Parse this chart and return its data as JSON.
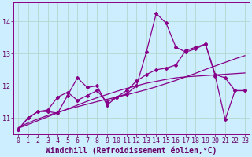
{
  "background_color": "#cceeff",
  "grid_color": "#b0d8cc",
  "line_color": "#880088",
  "xlabel": "Windchill (Refroidissement éolien,°C)",
  "xlabel_color": "#660066",
  "xlabel_fontsize": 7.0,
  "tick_color": "#660066",
  "tick_fontsize": 6.0,
  "ylim": [
    10.5,
    14.6
  ],
  "xlim": [
    -0.5,
    23.5
  ],
  "yticks": [
    11,
    12,
    13,
    14
  ],
  "xticks": [
    0,
    1,
    2,
    3,
    4,
    5,
    6,
    7,
    8,
    9,
    10,
    11,
    12,
    13,
    14,
    15,
    16,
    17,
    18,
    19,
    20,
    21,
    22,
    23
  ],
  "smooth1_x": [
    0,
    1,
    2,
    3,
    4,
    5,
    6,
    7,
    8,
    9,
    10,
    11,
    12,
    13,
    14,
    15,
    16,
    17,
    18,
    19,
    20,
    21,
    22,
    23
  ],
  "smooth1_y": [
    10.7,
    10.85,
    10.97,
    11.08,
    11.18,
    11.27,
    11.35,
    11.43,
    11.51,
    11.58,
    11.65,
    11.72,
    11.8,
    11.88,
    11.97,
    12.07,
    12.17,
    12.28,
    12.39,
    12.51,
    12.62,
    12.73,
    12.84,
    12.94
  ],
  "smooth2_x": [
    0,
    1,
    2,
    3,
    4,
    5,
    6,
    7,
    8,
    9,
    10,
    11,
    12,
    13,
    14,
    15,
    16,
    17,
    18,
    19,
    20,
    21,
    22,
    23
  ],
  "smooth2_y": [
    10.68,
    10.8,
    10.92,
    11.04,
    11.16,
    11.28,
    11.4,
    11.52,
    11.63,
    11.73,
    11.83,
    11.92,
    12.0,
    12.08,
    12.14,
    12.2,
    12.25,
    12.28,
    12.3,
    12.32,
    12.34,
    12.36,
    12.38,
    12.4
  ],
  "data1_x": [
    0,
    1,
    2,
    3,
    4,
    5,
    6,
    7,
    8,
    9,
    10,
    11,
    12,
    13,
    14,
    15,
    16,
    17,
    18,
    19,
    20,
    21,
    22,
    23
  ],
  "data1_y": [
    10.65,
    11.0,
    11.2,
    11.2,
    11.15,
    11.7,
    12.25,
    11.95,
    12.0,
    11.4,
    11.65,
    11.75,
    12.0,
    13.05,
    14.25,
    13.95,
    13.2,
    13.05,
    13.15,
    13.3,
    12.3,
    10.95,
    11.85,
    11.85
  ],
  "data2_x": [
    0,
    1,
    2,
    3,
    4,
    5,
    6,
    7,
    8,
    9,
    10,
    11,
    12,
    13,
    14,
    15,
    16,
    17,
    18,
    19,
    20,
    21,
    22,
    23
  ],
  "data2_y": [
    10.65,
    11.0,
    11.2,
    11.25,
    11.65,
    11.8,
    11.55,
    11.7,
    11.85,
    11.5,
    11.65,
    11.85,
    12.15,
    12.35,
    12.5,
    12.55,
    12.65,
    13.1,
    13.2,
    13.3,
    12.35,
    12.25,
    11.85,
    11.85
  ]
}
